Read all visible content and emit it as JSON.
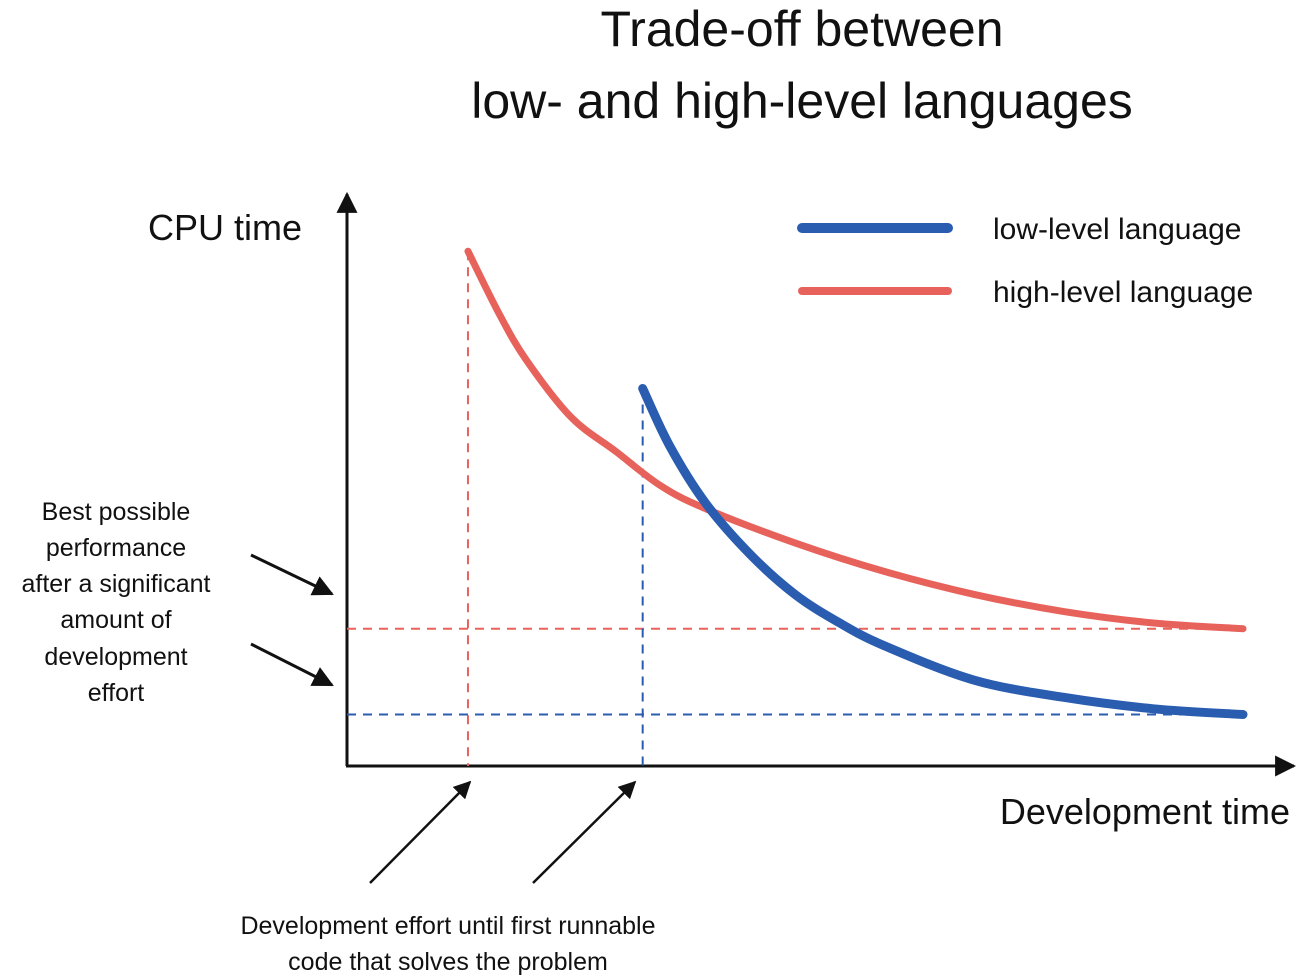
{
  "chart_data": {
    "type": "line",
    "title": [
      "Trade-off between",
      "low- and high-level languages"
    ],
    "xlabel": "Development time",
    "ylabel": "CPU time",
    "xlim": [
      0,
      100
    ],
    "ylim": [
      0,
      100
    ],
    "grid": false,
    "legend_position": "top-right",
    "series": [
      {
        "name": "low-level language",
        "color": "#2a5db0",
        "x": [
          33,
          36,
          40,
          45,
          50,
          55,
          60,
          70,
          80,
          90,
          100
        ],
        "y": [
          66,
          56,
          46,
          37,
          30,
          25,
          21,
          15,
          12,
          10,
          9
        ]
      },
      {
        "name": "high-level language",
        "color": "#e8625c",
        "x": [
          13.5,
          17,
          20,
          25,
          30,
          35,
          40,
          50,
          60,
          70,
          80,
          90,
          100
        ],
        "y": [
          90,
          79,
          71,
          61,
          55,
          49,
          45,
          39,
          34,
          30,
          27,
          25,
          24
        ]
      }
    ],
    "reference_lines": [
      {
        "orientation": "horizontal",
        "y": 24,
        "color": "#e8625c",
        "style": "dashed"
      },
      {
        "orientation": "horizontal",
        "y": 9,
        "color": "#2a5db0",
        "style": "dashed"
      },
      {
        "orientation": "vertical",
        "x": 13.5,
        "color": "#e8625c",
        "style": "dashed"
      },
      {
        "orientation": "vertical",
        "x": 33,
        "color": "#2a5db0",
        "style": "dashed"
      }
    ],
    "annotations": [
      {
        "id": "best-performance",
        "text": [
          "Best possible",
          "performance",
          "after a significant",
          "amount of",
          "development",
          "effort"
        ]
      },
      {
        "id": "first-runnable",
        "text": [
          "Development effort until first runnable",
          "code that solves the problem"
        ]
      }
    ]
  }
}
